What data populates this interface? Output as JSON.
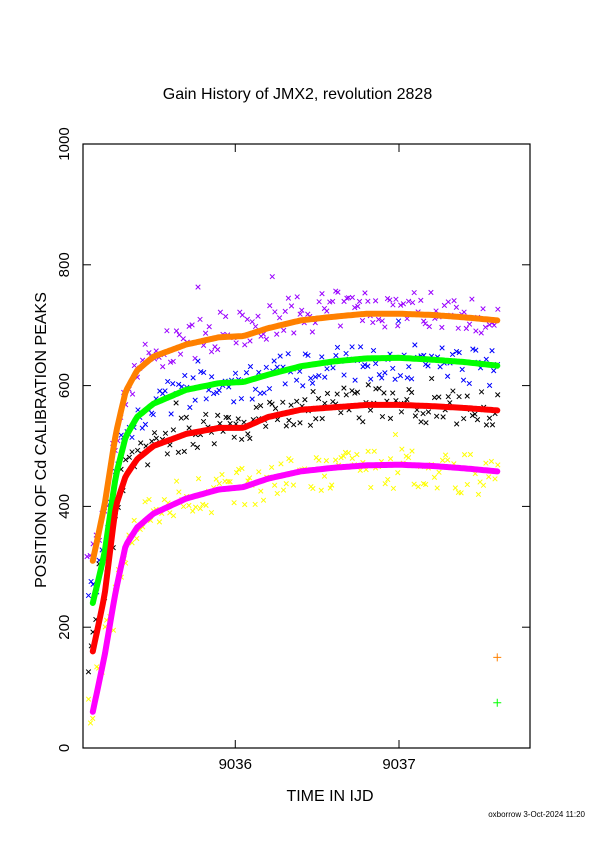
{
  "footer": "oxborrow 3-Oct-2024 11:20",
  "colors": {
    "orange": "#ff8000",
    "green": "#00ff00",
    "red": "#ff0000",
    "magenta": "#ff00ff",
    "purple": "#9900ff",
    "blue": "#0000ff",
    "black": "#000000",
    "yellow": "#ffff00"
  },
  "chart_data": {
    "type": "scatter",
    "title": "Gain History of JMX2, revolution 2828",
    "xlabel": "TIME IN IJD",
    "ylabel": "POSITION OF Cd CALIBRATION PEAKS",
    "xlim": [
      9035.07,
      9037.8
    ],
    "ylim": [
      0,
      1000
    ],
    "xticks": [
      9036,
      9037
    ],
    "yticks": [
      0,
      200,
      400,
      600,
      800,
      1000
    ],
    "grid": false,
    "legend": "none",
    "series": [
      {
        "color": "orange",
        "marker": "fit-curve",
        "noise": 0,
        "x": [
          9035.13,
          9035.2,
          9035.27,
          9035.33,
          9035.4,
          9035.5,
          9035.7,
          9035.9,
          9036.05,
          9036.2,
          9036.4,
          9036.6,
          9036.8,
          9037.0,
          9037.2,
          9037.4,
          9037.6
        ],
        "y": [
          310,
          400,
          520,
          590,
          625,
          648,
          668,
          680,
          682,
          695,
          708,
          714,
          719,
          719,
          717,
          713,
          708
        ]
      },
      {
        "color": "green",
        "marker": "fit-curve",
        "noise": 0,
        "x": [
          9035.13,
          9035.2,
          9035.27,
          9035.33,
          9035.4,
          9035.5,
          9035.7,
          9035.9,
          9036.05,
          9036.2,
          9036.4,
          9036.6,
          9036.8,
          9037.0,
          9037.2,
          9037.4,
          9037.6
        ],
        "y": [
          240,
          320,
          450,
          515,
          548,
          570,
          593,
          604,
          606,
          618,
          632,
          640,
          645,
          646,
          643,
          639,
          633
        ]
      },
      {
        "color": "red",
        "marker": "fit-curve",
        "noise": 0,
        "x": [
          9035.13,
          9035.2,
          9035.27,
          9035.33,
          9035.4,
          9035.5,
          9035.7,
          9035.9,
          9036.05,
          9036.2,
          9036.4,
          9036.6,
          9036.8,
          9037.0,
          9037.2,
          9037.4,
          9037.6
        ],
        "y": [
          160,
          250,
          400,
          450,
          478,
          500,
          520,
          530,
          530,
          548,
          560,
          564,
          568,
          568,
          566,
          563,
          559
        ]
      },
      {
        "color": "magenta",
        "marker": "fit-curve",
        "noise": 0,
        "x": [
          9035.13,
          9035.2,
          9035.27,
          9035.33,
          9035.4,
          9035.5,
          9035.7,
          9035.9,
          9036.05,
          9036.2,
          9036.4,
          9036.6,
          9036.8,
          9037.0,
          9037.2,
          9037.4,
          9037.6
        ],
        "y": [
          60,
          150,
          260,
          335,
          365,
          388,
          413,
          428,
          432,
          446,
          458,
          464,
          468,
          469,
          467,
          463,
          458
        ]
      },
      {
        "color": "purple",
        "marker": "x",
        "noise": 32,
        "x": [
          9035.1,
          9035.2,
          9035.3,
          9035.4,
          9035.5,
          9035.7,
          9035.9,
          9036.05,
          9036.2,
          9036.4,
          9036.6,
          9036.8,
          9037.0,
          9037.2,
          9037.4,
          9037.6
        ],
        "y": [
          290,
          390,
          560,
          635,
          650,
          672,
          690,
          690,
          705,
          718,
          725,
          728,
          728,
          726,
          722,
          715
        ]
      },
      {
        "color": "blue",
        "marker": "x",
        "noise": 30,
        "x": [
          9035.1,
          9035.2,
          9035.3,
          9035.4,
          9035.5,
          9035.7,
          9035.9,
          9036.05,
          9036.2,
          9036.4,
          9036.6,
          9036.8,
          9037.0,
          9037.2,
          9037.4,
          9037.6
        ],
        "y": [
          230,
          320,
          500,
          550,
          570,
          590,
          600,
          600,
          615,
          628,
          635,
          640,
          640,
          638,
          634,
          628
        ]
      },
      {
        "color": "black",
        "marker": "x",
        "noise": 30,
        "x": [
          9035.1,
          9035.2,
          9035.3,
          9035.4,
          9035.5,
          9035.7,
          9035.9,
          9036.05,
          9036.2,
          9036.4,
          9036.6,
          9036.8,
          9037.0,
          9037.2,
          9037.4,
          9037.6
        ],
        "y": [
          150,
          260,
          440,
          480,
          500,
          520,
          535,
          535,
          550,
          560,
          565,
          570,
          570,
          568,
          564,
          558
        ]
      },
      {
        "color": "yellow",
        "marker": "x",
        "noise": 34,
        "x": [
          9035.1,
          9035.2,
          9035.3,
          9035.4,
          9035.5,
          9035.7,
          9035.9,
          9036.05,
          9036.2,
          9036.4,
          9036.6,
          9036.8,
          9037.0,
          9037.2,
          9037.4,
          9037.6
        ],
        "y": [
          50,
          160,
          300,
          380,
          400,
          415,
          425,
          430,
          440,
          450,
          455,
          460,
          462,
          460,
          456,
          450
        ]
      },
      {
        "color": "orange",
        "marker": "+",
        "noise": 0,
        "x": [
          9037.6
        ],
        "y": [
          150
        ]
      },
      {
        "color": "green",
        "marker": "+",
        "noise": 0,
        "x": [
          9037.6
        ],
        "y": [
          75
        ]
      }
    ]
  }
}
